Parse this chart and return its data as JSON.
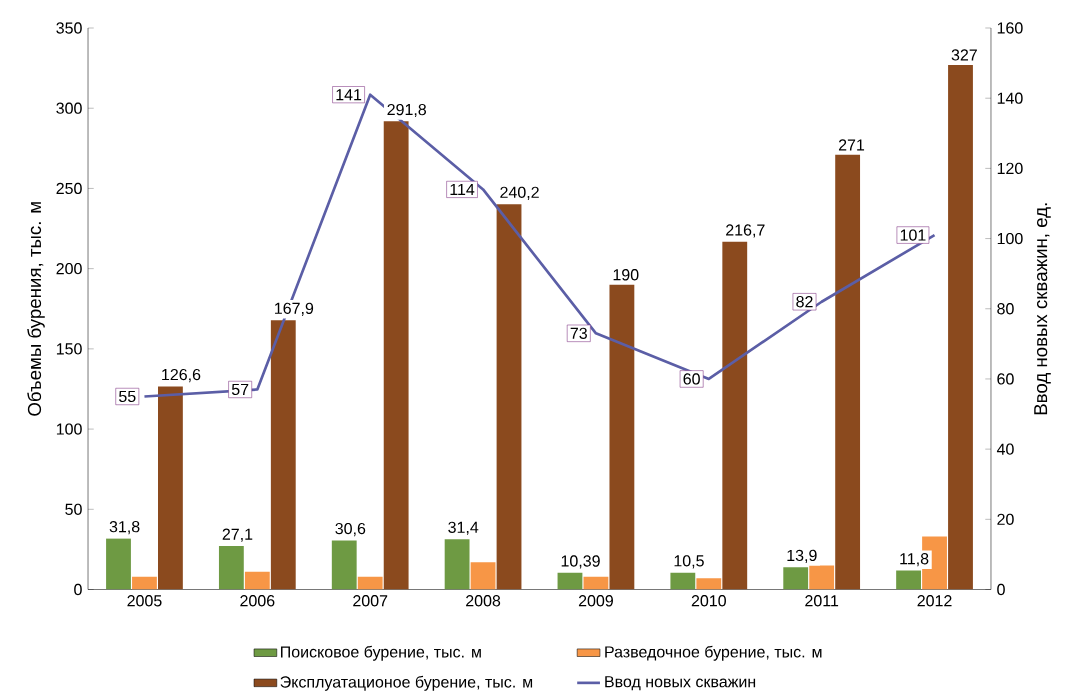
{
  "chart_data": {
    "type": "bar",
    "categories": [
      "2005",
      "2006",
      "2007",
      "2008",
      "2009",
      "2010",
      "2011",
      "2012"
    ],
    "ylabel": "Объемы бурения, тыс. м",
    "y2label": "Ввод новых скважин, ед.",
    "ylim": [
      0,
      350
    ],
    "yticks": [
      0,
      50,
      100,
      150,
      200,
      250,
      300,
      350
    ],
    "y2lim": [
      0,
      160
    ],
    "y2ticks": [
      0,
      20,
      40,
      60,
      80,
      100,
      120,
      140,
      160
    ],
    "legend": "bottom",
    "grid": false,
    "series": [
      {
        "name": "Поисковое бурение, тыс. м",
        "color": "#6e9a43",
        "values": [
          31.8,
          27.1,
          30.6,
          31.4,
          10.39,
          10.5,
          13.9,
          11.8
        ],
        "value_labels": [
          "31,8",
          "27,1",
          "30,6",
          "31,4",
          "10,39",
          "10,5",
          "13,9",
          "11,8"
        ]
      },
      {
        "name": "Разведочное бурение, тыс. м",
        "color": "#f79646",
        "values": [
          8,
          11,
          8,
          17,
          8,
          7,
          15,
          33
        ]
      },
      {
        "name": "Эксплуатационое бурение, тыс. м",
        "color": "#8b4a1e",
        "values": [
          126.6,
          167.9,
          291.8,
          240.2,
          190,
          216.7,
          271,
          327
        ],
        "value_labels": [
          "126,6",
          "167,9",
          "291,8",
          "240,2",
          "190",
          "216,7",
          "271",
          "327"
        ]
      },
      {
        "name": "Ввод новых скважин",
        "type": "line",
        "axis": "y2",
        "color": "#5b5ea6",
        "values": [
          55,
          57,
          141,
          114,
          73,
          60,
          82,
          101
        ],
        "value_labels": [
          "55",
          "57",
          "141",
          "114",
          "73",
          "60",
          "82",
          "101"
        ]
      }
    ]
  }
}
